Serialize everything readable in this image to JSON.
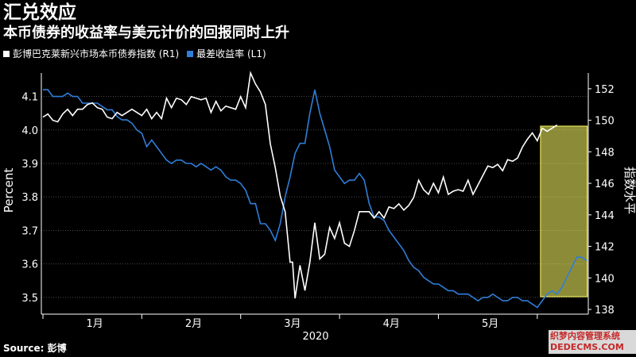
{
  "title": "汇兑效应",
  "subtitle": "本币债券的收益率与美元计价的回报同时上升",
  "source": "Source: 彭博",
  "watermark": "织梦内容管理系统 DEDECMS.COM",
  "colors": {
    "background": "#000000",
    "index_line": "#ffffff",
    "yield_line": "#2f7ed8",
    "highlight_fill": "#ffff66",
    "grid": "#4a4a4a"
  },
  "chart_data": {
    "type": "line",
    "x_ticks": [
      "1月",
      "2月",
      "3月",
      "4月",
      "5月"
    ],
    "x_year_label": "2020",
    "y_left": {
      "label": "Percent",
      "min": 3.45,
      "max": 4.17,
      "ticks": [
        3.5,
        3.6,
        3.7,
        3.8,
        3.9,
        4.0,
        4.1
      ]
    },
    "y_right": {
      "label": "指数水平",
      "min": 137.7,
      "max": 153.0,
      "ticks": [
        138,
        140,
        142,
        144,
        146,
        148,
        150,
        152
      ]
    },
    "highlight": {
      "x_start": 122,
      "x_end": 143,
      "note": ""
    },
    "series": [
      {
        "name": "彭博巴克莱新兴市场本币债券指数 (R1)",
        "axis": "right",
        "values": [
          [
            0,
            150.2
          ],
          [
            2,
            150.4
          ],
          [
            4,
            150.0
          ],
          [
            6,
            149.9
          ],
          [
            8,
            150.4
          ],
          [
            10,
            150.7
          ],
          [
            12,
            150.3
          ],
          [
            14,
            150.7
          ],
          [
            16,
            150.7
          ],
          [
            18,
            151.0
          ],
          [
            20,
            151.1
          ],
          [
            22,
            150.8
          ],
          [
            24,
            150.7
          ],
          [
            26,
            150.2
          ],
          [
            28,
            150.1
          ],
          [
            30,
            150.5
          ],
          [
            32,
            150.3
          ],
          [
            34,
            150.5
          ],
          [
            36,
            150.7
          ],
          [
            38,
            150.5
          ],
          [
            40,
            150.3
          ],
          [
            42,
            150.7
          ],
          [
            44,
            150.1
          ],
          [
            46,
            150.5
          ],
          [
            48,
            150.1
          ],
          [
            50,
            151.4
          ],
          [
            52,
            150.8
          ],
          [
            54,
            151.4
          ],
          [
            56,
            151.3
          ],
          [
            58,
            151.0
          ],
          [
            60,
            151.5
          ],
          [
            62,
            151.4
          ],
          [
            64,
            151.3
          ],
          [
            66,
            151.4
          ],
          [
            68,
            150.5
          ],
          [
            70,
            151.2
          ],
          [
            72,
            150.6
          ],
          [
            74,
            150.9
          ],
          [
            76,
            150.8
          ],
          [
            78,
            150.7
          ],
          [
            80,
            151.5
          ],
          [
            82,
            150.8
          ],
          [
            84,
            153.0
          ],
          [
            86,
            152.3
          ],
          [
            88,
            151.8
          ],
          [
            90,
            151.0
          ],
          [
            92,
            148.5
          ],
          [
            94,
            147.0
          ],
          [
            96,
            145.2
          ],
          [
            98,
            144.2
          ],
          [
            100,
            141.0
          ],
          [
            101,
            141.0
          ],
          [
            102,
            138.7
          ],
          [
            104,
            140.8
          ],
          [
            106,
            139.2
          ],
          [
            108,
            141.0
          ],
          [
            110,
            143.5
          ],
          [
            112,
            141.2
          ],
          [
            114,
            141.5
          ],
          [
            116,
            143.2
          ],
          [
            118,
            142.5
          ],
          [
            120,
            143.5
          ],
          [
            122,
            142.2
          ],
          [
            124,
            142.0
          ],
          [
            126,
            143.0
          ],
          [
            128,
            144.2
          ],
          [
            130,
            144.2
          ],
          [
            132,
            144.2
          ],
          [
            134,
            143.8
          ],
          [
            136,
            144.2
          ],
          [
            138,
            143.8
          ],
          [
            140,
            144.5
          ],
          [
            142,
            144.4
          ],
          [
            144,
            144.7
          ],
          [
            146,
            144.3
          ],
          [
            148,
            144.6
          ],
          [
            150,
            145.1
          ],
          [
            152,
            146.2
          ],
          [
            154,
            145.6
          ],
          [
            156,
            145.3
          ],
          [
            158,
            146.0
          ],
          [
            160,
            145.4
          ],
          [
            162,
            146.4
          ],
          [
            164,
            145.3
          ],
          [
            166,
            145.5
          ],
          [
            168,
            145.6
          ],
          [
            170,
            145.5
          ],
          [
            172,
            146.2
          ],
          [
            174,
            145.3
          ],
          [
            176,
            145.9
          ],
          [
            178,
            146.5
          ],
          [
            180,
            147.1
          ],
          [
            182,
            147.0
          ],
          [
            184,
            147.2
          ],
          [
            186,
            146.8
          ],
          [
            188,
            147.5
          ],
          [
            190,
            147.4
          ],
          [
            192,
            147.6
          ],
          [
            194,
            148.3
          ],
          [
            196,
            148.8
          ],
          [
            198,
            149.2
          ],
          [
            200,
            148.7
          ],
          [
            202,
            149.5
          ],
          [
            204,
            149.3
          ],
          [
            206,
            149.5
          ],
          [
            208,
            149.7
          ]
        ]
      },
      {
        "name": "最差收益率 (L1)",
        "axis": "left",
        "values": [
          [
            0,
            4.12
          ],
          [
            2,
            4.12
          ],
          [
            4,
            4.1
          ],
          [
            6,
            4.1
          ],
          [
            8,
            4.1
          ],
          [
            10,
            4.11
          ],
          [
            12,
            4.1
          ],
          [
            14,
            4.1
          ],
          [
            16,
            4.08
          ],
          [
            18,
            4.08
          ],
          [
            20,
            4.08
          ],
          [
            22,
            4.08
          ],
          [
            24,
            4.07
          ],
          [
            26,
            4.06
          ],
          [
            28,
            4.06
          ],
          [
            30,
            4.04
          ],
          [
            32,
            4.03
          ],
          [
            34,
            4.03
          ],
          [
            36,
            4.02
          ],
          [
            38,
            4.0
          ],
          [
            40,
            3.99
          ],
          [
            42,
            3.95
          ],
          [
            44,
            3.97
          ],
          [
            46,
            3.95
          ],
          [
            48,
            3.93
          ],
          [
            50,
            3.91
          ],
          [
            52,
            3.9
          ],
          [
            54,
            3.91
          ],
          [
            56,
            3.91
          ],
          [
            58,
            3.9
          ],
          [
            60,
            3.9
          ],
          [
            62,
            3.89
          ],
          [
            64,
            3.9
          ],
          [
            66,
            3.89
          ],
          [
            68,
            3.88
          ],
          [
            70,
            3.89
          ],
          [
            72,
            3.88
          ],
          [
            74,
            3.86
          ],
          [
            76,
            3.85
          ],
          [
            78,
            3.85
          ],
          [
            80,
            3.84
          ],
          [
            82,
            3.82
          ],
          [
            84,
            3.78
          ],
          [
            86,
            3.78
          ],
          [
            88,
            3.72
          ],
          [
            90,
            3.72
          ],
          [
            92,
            3.7
          ],
          [
            94,
            3.67
          ],
          [
            96,
            3.72
          ],
          [
            98,
            3.8
          ],
          [
            100,
            3.86
          ],
          [
            102,
            3.93
          ],
          [
            104,
            3.96
          ],
          [
            106,
            3.96
          ],
          [
            108,
            4.05
          ],
          [
            110,
            4.12
          ],
          [
            112,
            4.05
          ],
          [
            114,
            4.0
          ],
          [
            116,
            3.95
          ],
          [
            118,
            3.88
          ],
          [
            120,
            3.86
          ],
          [
            122,
            3.84
          ],
          [
            124,
            3.85
          ],
          [
            126,
            3.85
          ],
          [
            128,
            3.87
          ],
          [
            130,
            3.85
          ],
          [
            132,
            3.78
          ],
          [
            134,
            3.74
          ],
          [
            136,
            3.74
          ],
          [
            138,
            3.73
          ],
          [
            140,
            3.7
          ],
          [
            142,
            3.68
          ],
          [
            144,
            3.66
          ],
          [
            146,
            3.64
          ],
          [
            148,
            3.61
          ],
          [
            150,
            3.59
          ],
          [
            152,
            3.58
          ],
          [
            154,
            3.56
          ],
          [
            156,
            3.55
          ],
          [
            158,
            3.54
          ],
          [
            160,
            3.54
          ],
          [
            162,
            3.53
          ],
          [
            164,
            3.52
          ],
          [
            166,
            3.52
          ],
          [
            168,
            3.51
          ],
          [
            170,
            3.51
          ],
          [
            172,
            3.51
          ],
          [
            174,
            3.5
          ],
          [
            176,
            3.49
          ],
          [
            178,
            3.5
          ],
          [
            180,
            3.5
          ],
          [
            182,
            3.51
          ],
          [
            184,
            3.5
          ],
          [
            186,
            3.49
          ],
          [
            188,
            3.49
          ],
          [
            190,
            3.5
          ],
          [
            192,
            3.5
          ],
          [
            194,
            3.49
          ],
          [
            196,
            3.49
          ],
          [
            198,
            3.48
          ],
          [
            200,
            3.47
          ],
          [
            202,
            3.49
          ],
          [
            204,
            3.51
          ],
          [
            206,
            3.52
          ],
          [
            208,
            3.51
          ],
          [
            210,
            3.53
          ],
          [
            212,
            3.56
          ],
          [
            214,
            3.59
          ],
          [
            216,
            3.62
          ],
          [
            218,
            3.62
          ],
          [
            220,
            3.61
          ]
        ]
      }
    ]
  }
}
